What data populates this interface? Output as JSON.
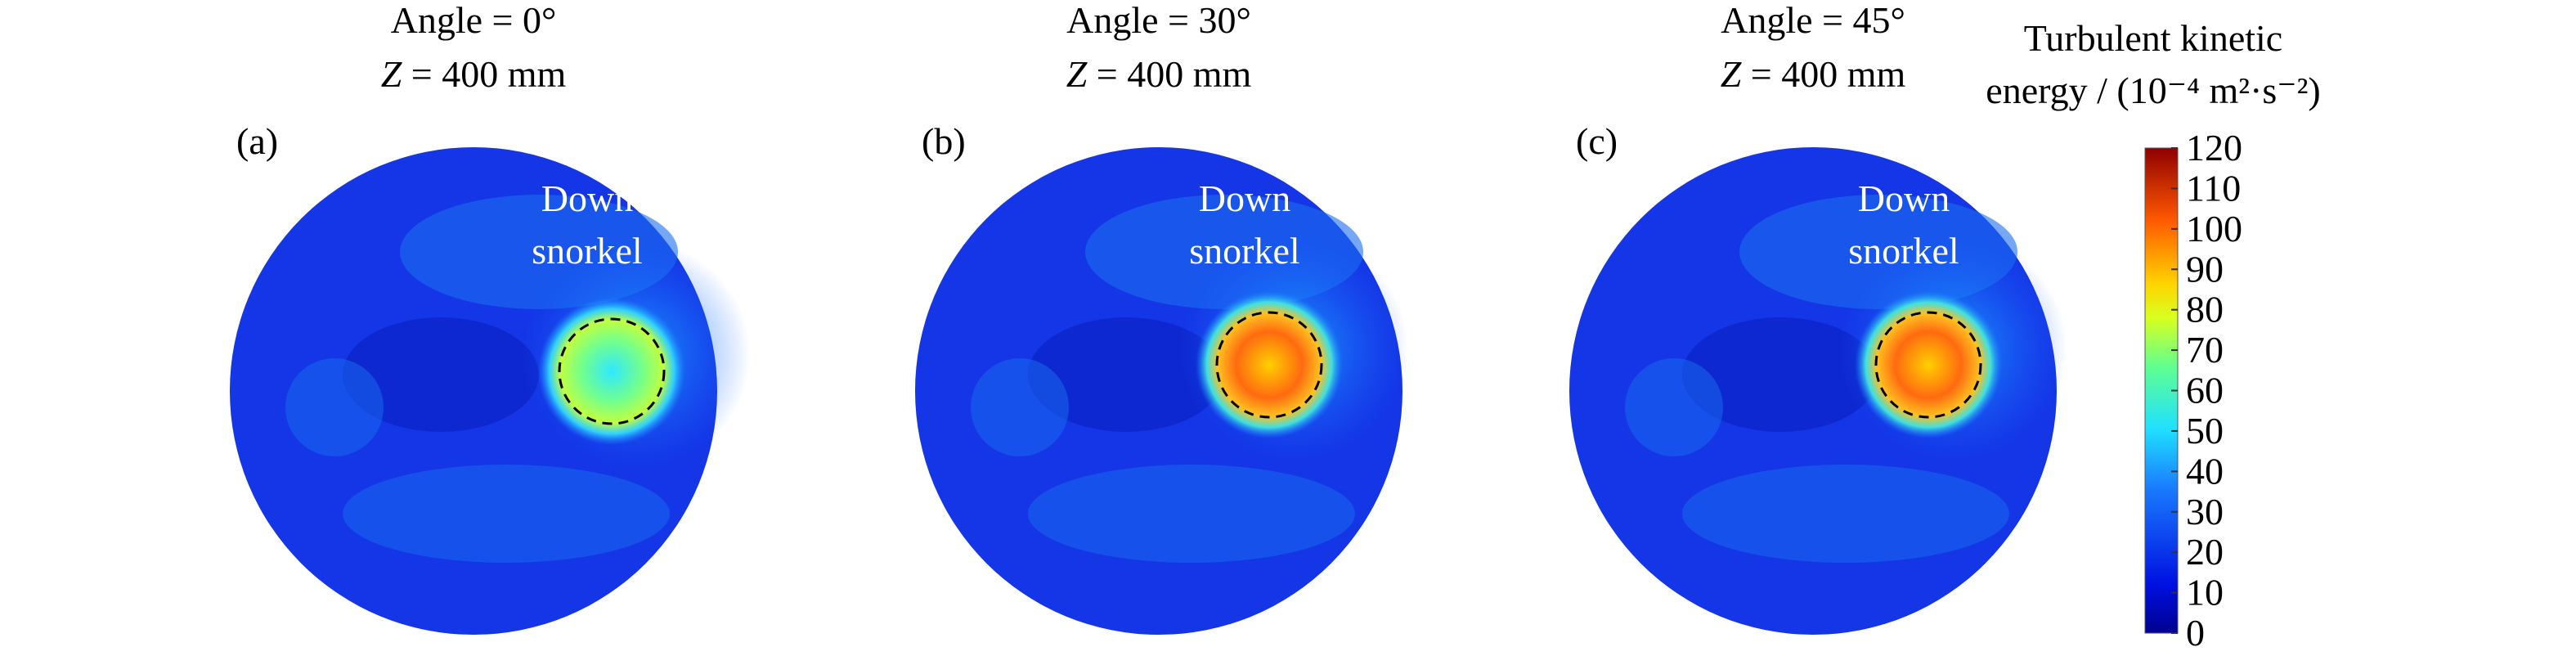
{
  "panels": [
    {
      "title": "Angle = 0°",
      "depth_symbol": "Z",
      "depth": "= 400 mm",
      "label": "(a)",
      "annotation": [
        "Down",
        "snorkel"
      ]
    },
    {
      "title": "Angle = 30°",
      "depth_symbol": "Z",
      "depth": "= 400 mm",
      "label": "(b)",
      "annotation": [
        "Down",
        "snorkel"
      ]
    },
    {
      "title": "Angle = 45°",
      "depth_symbol": "Z",
      "depth": "= 400 mm",
      "label": "(c)",
      "annotation": [
        "Down",
        "snorkel"
      ]
    }
  ],
  "colorbar": {
    "title": [
      "Turbulent kinetic",
      "energy / (10⁻⁴ m²·s⁻²)"
    ],
    "ticks": [
      0,
      10,
      20,
      30,
      40,
      50,
      60,
      70,
      80,
      90,
      100,
      110,
      120
    ]
  }
}
